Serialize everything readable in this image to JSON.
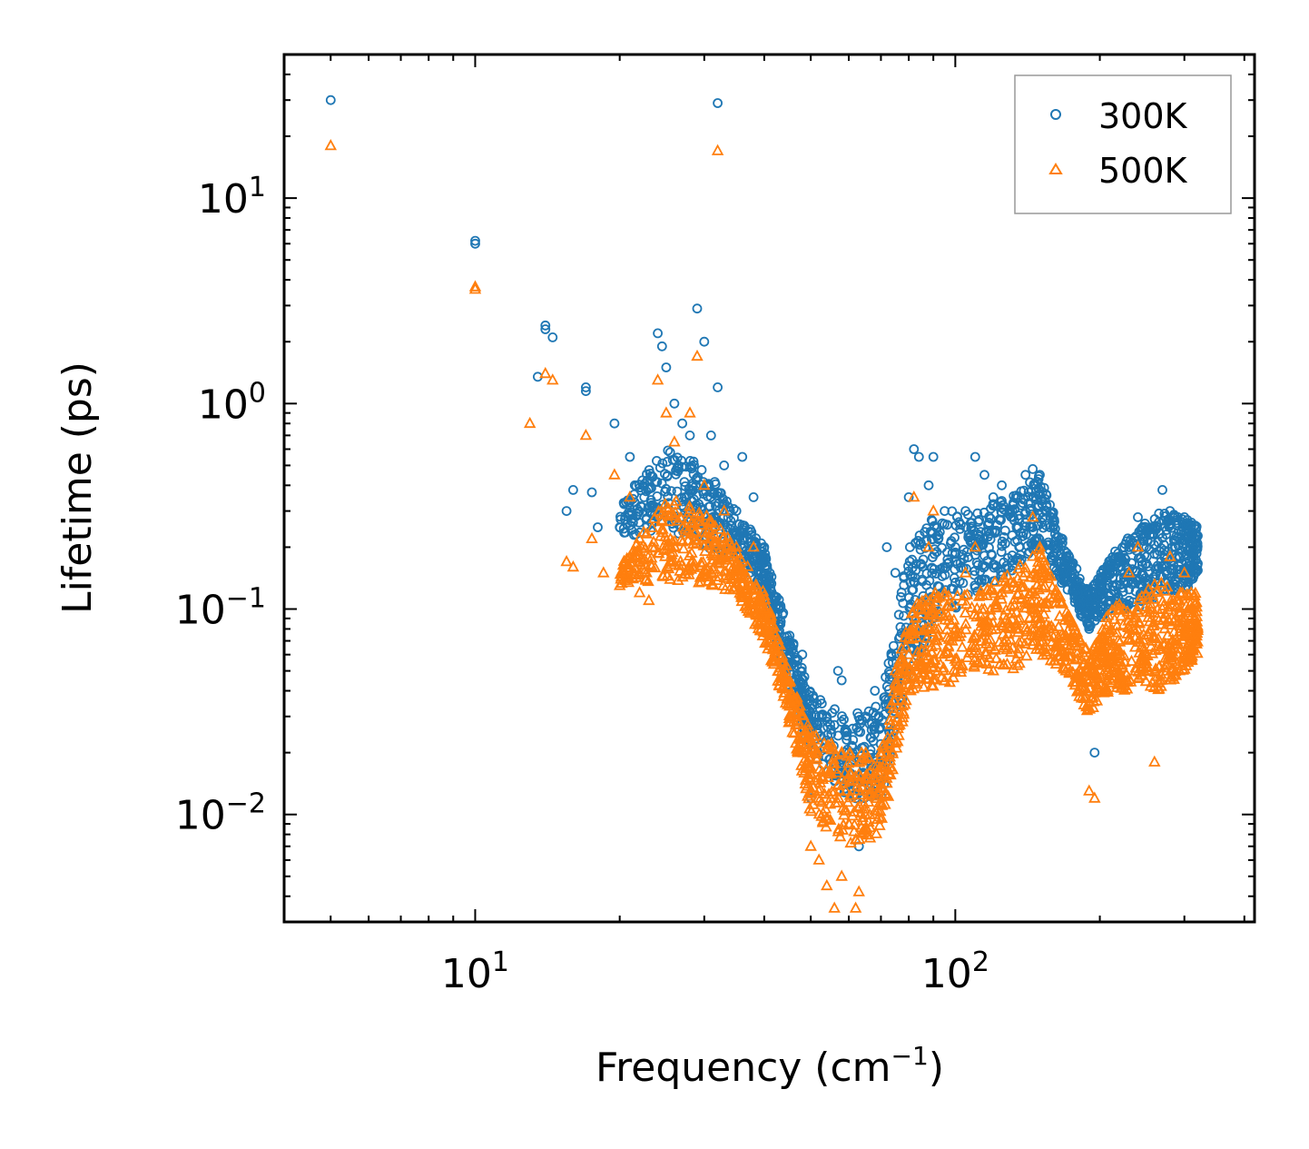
{
  "chart_data": {
    "type": "scatter",
    "xscale": "log",
    "yscale": "log",
    "xlabel": "Frequency (cm",
    "xlabel_sup": "−1",
    "xlabel_tail": ")",
    "ylabel": "Lifetime (ps)",
    "xlim": [
      4,
      420
    ],
    "ylim": [
      0.003,
      50
    ],
    "x_ticks": [
      {
        "value": 10,
        "base": "10",
        "exp": "1"
      },
      {
        "value": 100,
        "base": "10",
        "exp": "2"
      }
    ],
    "y_ticks": [
      {
        "value": 10,
        "base": "10",
        "exp": "1"
      },
      {
        "value": 1,
        "base": "10",
        "exp": "0"
      },
      {
        "value": 0.1,
        "base": "10",
        "exp": "−1"
      },
      {
        "value": 0.01,
        "base": "10",
        "exp": "−2"
      }
    ],
    "legend_position": "top-right",
    "series": [
      {
        "name": "300K",
        "marker": "circle",
        "color": "#1f77b4",
        "points": [
          [
            5,
            30
          ],
          [
            10,
            6.2
          ],
          [
            10,
            6.0
          ],
          [
            13.5,
            1.35
          ],
          [
            14,
            2.4
          ],
          [
            14,
            2.3
          ],
          [
            14.5,
            2.1
          ],
          [
            15.5,
            0.3
          ],
          [
            16,
            0.38
          ],
          [
            17,
            1.2
          ],
          [
            17,
            1.15
          ],
          [
            17.5,
            0.37
          ],
          [
            18,
            0.25
          ],
          [
            19.5,
            0.8
          ],
          [
            20,
            0.25
          ],
          [
            21,
            0.55
          ],
          [
            21.5,
            0.4
          ],
          [
            22.5,
            0.35
          ],
          [
            24,
            2.2
          ],
          [
            24.5,
            1.9
          ],
          [
            25,
            1.5
          ],
          [
            26,
            1.0
          ],
          [
            27,
            0.8
          ],
          [
            28,
            0.7
          ],
          [
            29,
            2.9
          ],
          [
            30,
            2.0
          ],
          [
            31,
            0.7
          ],
          [
            32,
            29
          ],
          [
            32,
            1.2
          ],
          [
            33,
            0.5
          ],
          [
            35,
            0.3
          ],
          [
            36,
            0.55
          ],
          [
            38,
            0.35
          ],
          [
            40,
            0.2
          ],
          [
            43,
            0.1
          ],
          [
            45,
            0.065
          ],
          [
            47,
            0.035
          ],
          [
            48,
            0.06
          ],
          [
            50,
            0.012
          ],
          [
            52,
            0.03
          ],
          [
            54,
            0.03
          ],
          [
            57,
            0.05
          ],
          [
            58,
            0.045
          ],
          [
            60,
            0.02
          ],
          [
            62,
            0.012
          ],
          [
            63,
            0.007
          ],
          [
            65,
            0.03
          ],
          [
            68,
            0.04
          ],
          [
            70,
            0.02
          ],
          [
            72,
            0.2
          ],
          [
            75,
            0.15
          ],
          [
            80,
            0.35
          ],
          [
            82,
            0.6
          ],
          [
            84,
            0.55
          ],
          [
            88,
            0.4
          ],
          [
            90,
            0.55
          ],
          [
            95,
            0.3
          ],
          [
            100,
            0.2
          ],
          [
            105,
            0.3
          ],
          [
            110,
            0.55
          ],
          [
            115,
            0.45
          ],
          [
            120,
            0.35
          ],
          [
            125,
            0.4
          ],
          [
            130,
            0.3
          ],
          [
            135,
            0.35
          ],
          [
            140,
            0.45
          ],
          [
            145,
            0.48
          ],
          [
            150,
            0.45
          ],
          [
            155,
            0.3
          ],
          [
            160,
            0.25
          ],
          [
            170,
            0.18
          ],
          [
            180,
            0.12
          ],
          [
            190,
            0.08
          ],
          [
            195,
            0.02
          ],
          [
            200,
            0.12
          ],
          [
            210,
            0.15
          ],
          [
            220,
            0.18
          ],
          [
            230,
            0.2
          ],
          [
            240,
            0.28
          ],
          [
            250,
            0.2
          ],
          [
            260,
            0.25
          ],
          [
            270,
            0.38
          ],
          [
            280,
            0.3
          ],
          [
            300,
            0.28
          ],
          [
            310,
            0.25
          ]
        ],
        "band": [
          [
            20,
            0.22,
            0.32
          ],
          [
            25,
            0.25,
            0.6
          ],
          [
            30,
            0.2,
            0.5
          ],
          [
            35,
            0.18,
            0.3
          ],
          [
            40,
            0.12,
            0.2
          ],
          [
            45,
            0.04,
            0.08
          ],
          [
            50,
            0.02,
            0.04
          ],
          [
            60,
            0.012,
            0.03
          ],
          [
            70,
            0.012,
            0.035
          ],
          [
            80,
            0.05,
            0.2
          ],
          [
            90,
            0.08,
            0.3
          ],
          [
            110,
            0.12,
            0.3
          ],
          [
            130,
            0.15,
            0.35
          ],
          [
            150,
            0.2,
            0.45
          ],
          [
            170,
            0.12,
            0.2
          ],
          [
            190,
            0.08,
            0.12
          ],
          [
            210,
            0.1,
            0.18
          ],
          [
            240,
            0.1,
            0.25
          ],
          [
            270,
            0.12,
            0.3
          ],
          [
            300,
            0.12,
            0.28
          ],
          [
            320,
            0.15,
            0.25
          ]
        ]
      },
      {
        "name": "500K",
        "marker": "triangle",
        "color": "#ff7f0e",
        "points": [
          [
            5,
            18
          ],
          [
            10,
            3.7
          ],
          [
            10,
            3.6
          ],
          [
            13,
            0.8
          ],
          [
            14,
            1.4
          ],
          [
            14.5,
            1.3
          ],
          [
            15.5,
            0.17
          ],
          [
            16,
            0.16
          ],
          [
            17,
            0.7
          ],
          [
            17.5,
            0.22
          ],
          [
            18.5,
            0.15
          ],
          [
            19.5,
            0.45
          ],
          [
            20,
            0.13
          ],
          [
            21,
            0.35
          ],
          [
            22,
            0.12
          ],
          [
            23,
            0.11
          ],
          [
            24,
            1.3
          ],
          [
            25,
            0.9
          ],
          [
            26,
            0.65
          ],
          [
            28,
            0.9
          ],
          [
            29,
            1.7
          ],
          [
            30,
            0.4
          ],
          [
            32,
            17
          ],
          [
            33,
            0.3
          ],
          [
            35,
            0.2
          ],
          [
            38,
            0.2
          ],
          [
            40,
            0.1
          ],
          [
            43,
            0.06
          ],
          [
            45,
            0.028
          ],
          [
            47,
            0.02
          ],
          [
            50,
            0.007
          ],
          [
            52,
            0.006
          ],
          [
            54,
            0.0045
          ],
          [
            56,
            0.0035
          ],
          [
            58,
            0.005
          ],
          [
            60,
            0.009
          ],
          [
            62,
            0.0035
          ],
          [
            63,
            0.0042
          ],
          [
            65,
            0.01
          ],
          [
            68,
            0.015
          ],
          [
            70,
            0.02
          ],
          [
            72,
            0.015
          ],
          [
            75,
            0.05
          ],
          [
            80,
            0.06
          ],
          [
            82,
            0.35
          ],
          [
            85,
            0.1
          ],
          [
            88,
            0.2
          ],
          [
            90,
            0.3
          ],
          [
            95,
            0.12
          ],
          [
            100,
            0.08
          ],
          [
            105,
            0.15
          ],
          [
            110,
            0.2
          ],
          [
            115,
            0.1
          ],
          [
            120,
            0.05
          ],
          [
            125,
            0.12
          ],
          [
            130,
            0.08
          ],
          [
            140,
            0.15
          ],
          [
            145,
            0.28
          ],
          [
            150,
            0.2
          ],
          [
            155,
            0.06
          ],
          [
            160,
            0.08
          ],
          [
            170,
            0.05
          ],
          [
            180,
            0.04
          ],
          [
            190,
            0.013
          ],
          [
            195,
            0.012
          ],
          [
            200,
            0.04
          ],
          [
            210,
            0.07
          ],
          [
            220,
            0.1
          ],
          [
            230,
            0.15
          ],
          [
            240,
            0.2
          ],
          [
            250,
            0.06
          ],
          [
            260,
            0.018
          ],
          [
            270,
            0.1
          ],
          [
            280,
            0.18
          ],
          [
            300,
            0.15
          ],
          [
            310,
            0.12
          ]
        ],
        "band": [
          [
            20,
            0.13,
            0.16
          ],
          [
            25,
            0.14,
            0.35
          ],
          [
            30,
            0.13,
            0.3
          ],
          [
            35,
            0.12,
            0.2
          ],
          [
            40,
            0.07,
            0.12
          ],
          [
            45,
            0.03,
            0.05
          ],
          [
            50,
            0.01,
            0.025
          ],
          [
            60,
            0.007,
            0.02
          ],
          [
            70,
            0.008,
            0.02
          ],
          [
            80,
            0.04,
            0.1
          ],
          [
            90,
            0.04,
            0.12
          ],
          [
            110,
            0.05,
            0.12
          ],
          [
            130,
            0.05,
            0.15
          ],
          [
            150,
            0.06,
            0.2
          ],
          [
            170,
            0.05,
            0.1
          ],
          [
            190,
            0.03,
            0.06
          ],
          [
            210,
            0.04,
            0.1
          ],
          [
            240,
            0.04,
            0.12
          ],
          [
            270,
            0.04,
            0.14
          ],
          [
            300,
            0.05,
            0.12
          ],
          [
            320,
            0.06,
            0.12
          ]
        ]
      }
    ]
  }
}
